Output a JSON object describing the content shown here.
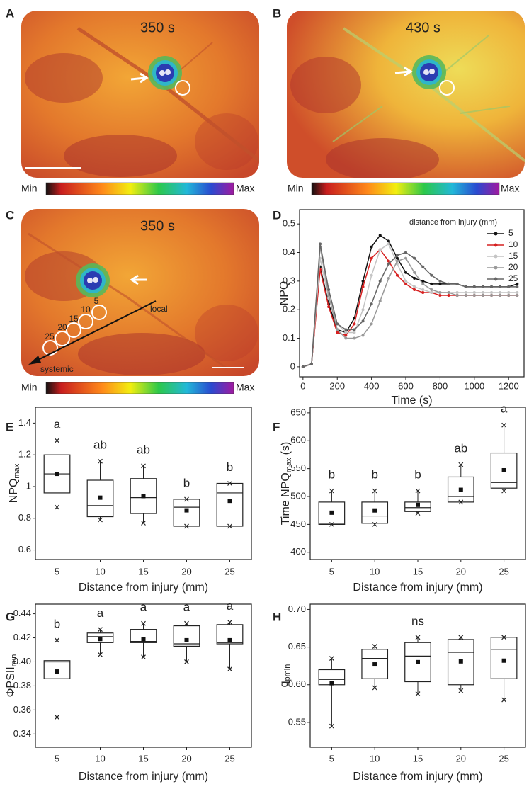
{
  "panel_labels": [
    "A",
    "B",
    "C",
    "D",
    "E",
    "F",
    "G",
    "H"
  ],
  "images": [
    {
      "time": "350 s",
      "min": "Min",
      "max": "Max"
    },
    {
      "time": "430 s",
      "min": "Min",
      "max": "Max"
    },
    {
      "time": "350 s",
      "min": "Min",
      "max": "Max",
      "circle_labels": [
        "25",
        "20",
        "15",
        "10",
        "5"
      ],
      "local": "local",
      "systemic": "systemic"
    }
  ],
  "chart_data": [
    {
      "type": "line",
      "y_label": "NPQ",
      "x_label": "Time (s)",
      "legend_title": "distance from injury (mm)",
      "legend": "upper right",
      "xlim": [
        -20,
        1290
      ],
      "xticks": [
        0,
        200,
        400,
        600,
        800,
        1000,
        1200
      ],
      "ylim": [
        -0.035,
        0.55
      ],
      "yticks": [
        0,
        0.1,
        0.2,
        0.3,
        0.4,
        0.5
      ],
      "x": [
        0,
        50,
        100,
        150,
        200,
        250,
        300,
        350,
        400,
        450,
        500,
        550,
        600,
        650,
        700,
        750,
        800,
        850,
        900,
        950,
        1000,
        1050,
        1100,
        1150,
        1200,
        1250
      ],
      "series": [
        {
          "name": "5",
          "color": "#111111",
          "values": [
            0,
            0.01,
            0.35,
            0.22,
            0.13,
            0.12,
            0.17,
            0.3,
            0.42,
            0.46,
            0.44,
            0.38,
            0.33,
            0.31,
            0.3,
            0.29,
            0.29,
            0.29,
            0.29,
            0.28,
            0.28,
            0.28,
            0.28,
            0.28,
            0.28,
            0.29
          ]
        },
        {
          "name": "10",
          "color": "#d62020",
          "values": [
            0,
            0.01,
            0.34,
            0.21,
            0.12,
            0.11,
            0.15,
            0.28,
            0.38,
            0.41,
            0.37,
            0.32,
            0.29,
            0.27,
            0.26,
            0.26,
            0.25,
            0.25,
            0.25,
            0.25,
            0.25,
            0.25,
            0.25,
            0.25,
            0.25,
            0.25
          ]
        },
        {
          "name": "15",
          "color": "#c4c4c4",
          "values": [
            0,
            0.01,
            0.38,
            0.24,
            0.15,
            0.12,
            0.12,
            0.2,
            0.32,
            0.41,
            0.43,
            0.36,
            0.3,
            0.28,
            0.27,
            0.26,
            0.26,
            0.26,
            0.26,
            0.26,
            0.26,
            0.26,
            0.26,
            0.26,
            0.26,
            0.26
          ]
        },
        {
          "name": "20",
          "color": "#999999",
          "values": [
            0,
            0.01,
            0.42,
            0.25,
            0.13,
            0.1,
            0.1,
            0.11,
            0.15,
            0.23,
            0.31,
            0.37,
            0.38,
            0.33,
            0.29,
            0.27,
            0.26,
            0.26,
            0.25,
            0.25,
            0.25,
            0.25,
            0.25,
            0.25,
            0.25,
            0.25
          ]
        },
        {
          "name": "25",
          "color": "#666666",
          "values": [
            0,
            0.01,
            0.43,
            0.27,
            0.15,
            0.13,
            0.13,
            0.16,
            0.22,
            0.3,
            0.36,
            0.39,
            0.4,
            0.38,
            0.35,
            0.32,
            0.3,
            0.29,
            0.29,
            0.28,
            0.28,
            0.28,
            0.28,
            0.28,
            0.28,
            0.28
          ]
        }
      ]
    },
    {
      "type": "box",
      "y_label": {
        "text": "NPQ",
        "sub": "max"
      },
      "x_label": "Distance from injury (mm)",
      "categories": [
        "5",
        "10",
        "15",
        "20",
        "25"
      ],
      "ylim": [
        0.54,
        1.5
      ],
      "yticks": [
        0.6,
        0.8,
        1.0,
        1.2,
        1.4
      ],
      "boxes": [
        {
          "q1": 0.96,
          "median": 1.08,
          "q3": 1.2,
          "mean": 1.08,
          "min": 0.87,
          "max": 1.29
        },
        {
          "q1": 0.81,
          "median": 0.88,
          "q3": 1.04,
          "mean": 0.93,
          "min": 0.79,
          "max": 1.16
        },
        {
          "q1": 0.83,
          "median": 0.93,
          "q3": 1.05,
          "mean": 0.94,
          "min": 0.77,
          "max": 1.13
        },
        {
          "q1": 0.75,
          "median": 0.87,
          "q3": 0.92,
          "mean": 0.85,
          "min": 0.75,
          "max": 0.92
        },
        {
          "q1": 0.75,
          "median": 0.96,
          "q3": 1.02,
          "mean": 0.91,
          "min": 0.75,
          "max": 1.02
        }
      ],
      "letters": [
        "a",
        "ab",
        "ab",
        "b",
        "b"
      ]
    },
    {
      "type": "box",
      "y_label": {
        "text": "Time NPQ",
        "sub": "max",
        "suffix": "(s)"
      },
      "x_label": "Distance from injury (mm)",
      "categories": [
        "5",
        "10",
        "15",
        "20",
        "25"
      ],
      "ylim": [
        387,
        660
      ],
      "yticks": [
        400,
        450,
        500,
        550,
        600,
        650
      ],
      "boxes": [
        {
          "q1": 450,
          "median": 452,
          "q3": 490,
          "mean": 471,
          "min": 450,
          "max": 510
        },
        {
          "q1": 452,
          "median": 465,
          "q3": 490,
          "mean": 475,
          "min": 450,
          "max": 510
        },
        {
          "q1": 473,
          "median": 480,
          "q3": 490,
          "mean": 485,
          "min": 470,
          "max": 510
        },
        {
          "q1": 490,
          "median": 500,
          "q3": 535,
          "mean": 512,
          "min": 490,
          "max": 557
        },
        {
          "q1": 515,
          "median": 525,
          "q3": 578,
          "mean": 547,
          "min": 510,
          "max": 628
        }
      ],
      "letters": [
        "b",
        "b",
        "b",
        "ab",
        "a"
      ]
    },
    {
      "type": "box",
      "y_label": {
        "text": "ΦPSII",
        "sub": "min"
      },
      "x_label": "Distance from injury (mm)",
      "categories": [
        "5",
        "10",
        "15",
        "20",
        "25"
      ],
      "ylim": [
        0.329,
        0.448
      ],
      "yticks": [
        0.34,
        0.36,
        0.38,
        {
          "value": 0.4,
          "label": "0.40"
        },
        0.42,
        0.44
      ],
      "boxes": [
        {
          "q1": 0.386,
          "median": 0.4,
          "q3": 0.401,
          "mean": 0.392,
          "min": 0.354,
          "max": 0.418
        },
        {
          "q1": 0.416,
          "median": 0.421,
          "q3": 0.424,
          "mean": 0.419,
          "min": 0.406,
          "max": 0.427
        },
        {
          "q1": 0.416,
          "median": 0.417,
          "q3": 0.427,
          "mean": 0.419,
          "min": 0.404,
          "max": 0.432
        },
        {
          "q1": 0.413,
          "median": 0.415,
          "q3": 0.43,
          "mean": 0.418,
          "min": 0.4,
          "max": 0.432
        },
        {
          "q1": 0.415,
          "median": 0.416,
          "q3": 0.431,
          "mean": 0.418,
          "min": 0.394,
          "max": 0.433
        }
      ],
      "letters": [
        "b",
        "a",
        "a",
        "a",
        "a"
      ]
    },
    {
      "type": "box",
      "y_label": {
        "text": "q",
        "sub": "pmin"
      },
      "x_label": "Distance from injury (mm)",
      "categories": [
        "5",
        "10",
        "15",
        "20",
        "25"
      ],
      "ylim": [
        0.517,
        0.707
      ],
      "yticks": [
        0.55,
        {
          "value": 0.6,
          "label": "0.60"
        },
        0.65,
        {
          "value": 0.7,
          "label": "0.70"
        }
      ],
      "boxes": [
        {
          "q1": 0.6,
          "median": 0.607,
          "q3": 0.62,
          "mean": 0.602,
          "min": 0.545,
          "max": 0.635
        },
        {
          "q1": 0.608,
          "median": 0.635,
          "q3": 0.647,
          "mean": 0.627,
          "min": 0.596,
          "max": 0.651
        },
        {
          "q1": 0.604,
          "median": 0.638,
          "q3": 0.656,
          "mean": 0.63,
          "min": 0.588,
          "max": 0.663
        },
        {
          "q1": 0.6,
          "median": 0.643,
          "q3": 0.66,
          "mean": 0.631,
          "min": 0.592,
          "max": 0.663
        },
        {
          "q1": 0.608,
          "median": 0.647,
          "q3": 0.663,
          "mean": 0.632,
          "min": 0.58,
          "max": 0.663
        }
      ],
      "letters": [
        null,
        null,
        "ns",
        null,
        null
      ]
    }
  ]
}
